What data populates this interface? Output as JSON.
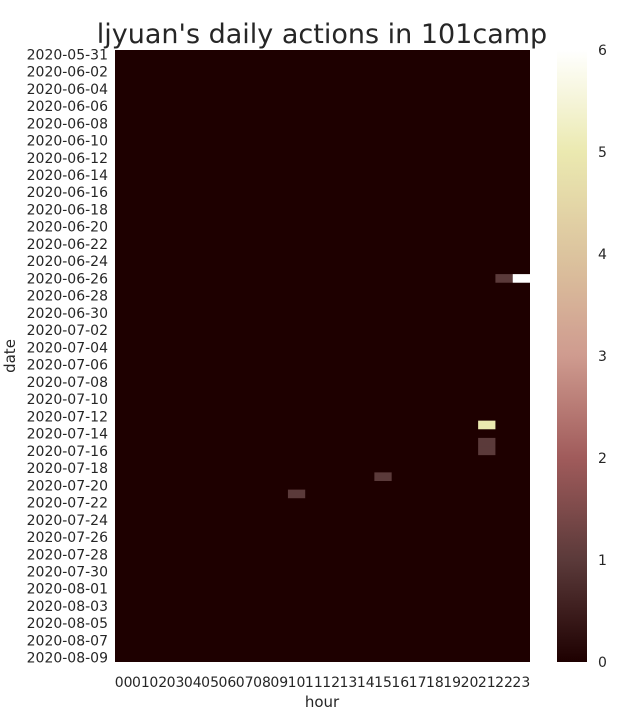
{
  "chart_data": {
    "type": "heatmap",
    "title": "ljyuan's daily actions in 101camp",
    "xlabel": "hour",
    "ylabel": "date",
    "x_categories": [
      "00",
      "01",
      "02",
      "03",
      "04",
      "05",
      "06",
      "07",
      "08",
      "09",
      "10",
      "11",
      "12",
      "13",
      "14",
      "15",
      "16",
      "17",
      "18",
      "19",
      "20",
      "21",
      "22",
      "23"
    ],
    "y_categories": [
      "2020-05-31",
      "2020-06-01",
      "2020-06-02",
      "2020-06-03",
      "2020-06-04",
      "2020-06-05",
      "2020-06-06",
      "2020-06-07",
      "2020-06-08",
      "2020-06-09",
      "2020-06-10",
      "2020-06-11",
      "2020-06-12",
      "2020-06-13",
      "2020-06-14",
      "2020-06-15",
      "2020-06-16",
      "2020-06-17",
      "2020-06-18",
      "2020-06-19",
      "2020-06-20",
      "2020-06-21",
      "2020-06-22",
      "2020-06-23",
      "2020-06-24",
      "2020-06-25",
      "2020-06-26",
      "2020-06-27",
      "2020-06-28",
      "2020-06-29",
      "2020-06-30",
      "2020-07-01",
      "2020-07-02",
      "2020-07-03",
      "2020-07-04",
      "2020-07-05",
      "2020-07-06",
      "2020-07-07",
      "2020-07-08",
      "2020-07-09",
      "2020-07-10",
      "2020-07-11",
      "2020-07-12",
      "2020-07-13",
      "2020-07-14",
      "2020-07-15",
      "2020-07-16",
      "2020-07-17",
      "2020-07-18",
      "2020-07-19",
      "2020-07-20",
      "2020-07-21",
      "2020-07-22",
      "2020-07-23",
      "2020-07-24",
      "2020-07-25",
      "2020-07-26",
      "2020-07-27",
      "2020-07-28",
      "2020-07-29",
      "2020-07-30",
      "2020-07-31",
      "2020-08-01",
      "2020-08-02",
      "2020-08-03",
      "2020-08-04",
      "2020-08-05",
      "2020-08-06",
      "2020-08-07",
      "2020-08-08",
      "2020-08-09"
    ],
    "y_tick_labels": [
      "2020-05-31",
      "2020-06-02",
      "2020-06-04",
      "2020-06-06",
      "2020-06-08",
      "2020-06-10",
      "2020-06-12",
      "2020-06-14",
      "2020-06-16",
      "2020-06-18",
      "2020-06-20",
      "2020-06-22",
      "2020-06-24",
      "2020-06-26",
      "2020-06-28",
      "2020-06-30",
      "2020-07-02",
      "2020-07-04",
      "2020-07-06",
      "2020-07-08",
      "2020-07-10",
      "2020-07-12",
      "2020-07-14",
      "2020-07-16",
      "2020-07-18",
      "2020-07-20",
      "2020-07-22",
      "2020-07-24",
      "2020-07-26",
      "2020-07-28",
      "2020-07-30",
      "2020-08-01",
      "2020-08-03",
      "2020-08-05",
      "2020-08-07",
      "2020-08-09"
    ],
    "default_value": 0,
    "nonzero_cells": [
      {
        "date": "2020-06-26",
        "hour": "22",
        "value": 1
      },
      {
        "date": "2020-06-26",
        "hour": "23",
        "value": 6
      },
      {
        "date": "2020-07-13",
        "hour": "21",
        "value": 5
      },
      {
        "date": "2020-07-15",
        "hour": "21",
        "value": 1
      },
      {
        "date": "2020-07-16",
        "hour": "21",
        "value": 1
      },
      {
        "date": "2020-07-19",
        "hour": "15",
        "value": 1
      },
      {
        "date": "2020-07-21",
        "hour": "10",
        "value": 1
      }
    ],
    "colorbar": {
      "vmin": 0,
      "vmax": 6,
      "ticks": [
        "0",
        "1",
        "2",
        "3",
        "4",
        "5",
        "6"
      ],
      "colormap": "pink",
      "color_stops": [
        "#1e0000",
        "#5b3a3a",
        "#a05b5b",
        "#cf9b8f",
        "#dcc49e",
        "#ebe9b0",
        "#ffffff"
      ]
    },
    "grid": false
  }
}
